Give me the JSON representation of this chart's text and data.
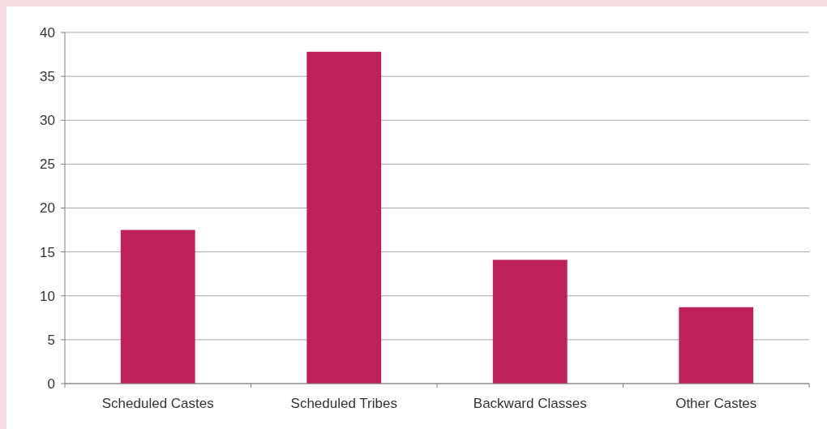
{
  "chart_data": {
    "type": "bar",
    "categories": [
      "Scheduled Castes",
      "Scheduled Tribes",
      "Backward Classes",
      "Other Castes"
    ],
    "values": [
      17.5,
      37.8,
      14.1,
      8.7
    ],
    "color": "#be215a",
    "ylim": [
      0,
      40
    ],
    "yticks": [
      0,
      5,
      10,
      15,
      20,
      25,
      30,
      35,
      40
    ],
    "grid": "y"
  }
}
